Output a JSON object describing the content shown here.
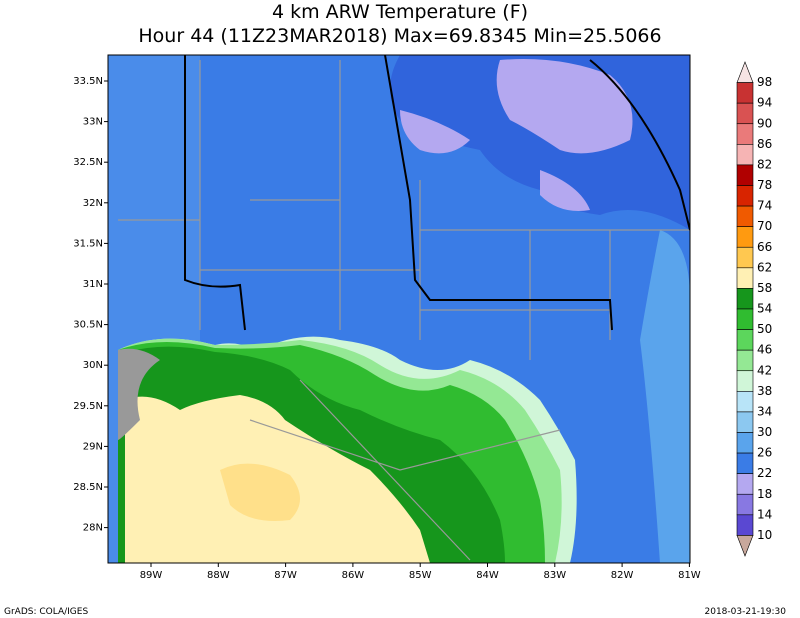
{
  "header": {
    "title": "4 km ARW Temperature (F)",
    "subtitle": "Hour 44 (11Z23MAR2018) Max=69.8345 Min=25.5066"
  },
  "lat_labels": [
    "33.5N",
    "33N",
    "32.5N",
    "32N",
    "31.5N",
    "31N",
    "30.5N",
    "30N",
    "29.5N",
    "29N",
    "28.5N",
    "28N"
  ],
  "lon_labels": [
    "89W",
    "88W",
    "87W",
    "86W",
    "85W",
    "84W",
    "83W",
    "82W",
    "81W"
  ],
  "colorbar": {
    "levels": [
      98,
      94,
      90,
      86,
      82,
      78,
      74,
      70,
      66,
      62,
      58,
      54,
      50,
      46,
      42,
      38,
      34,
      30,
      26,
      22,
      18,
      14,
      10
    ],
    "colors": [
      "#f6e4e4",
      "#c83232",
      "#d95252",
      "#ea7a7a",
      "#f6b4b4",
      "#b00000",
      "#d82400",
      "#f05a00",
      "#ff9a10",
      "#ffc850",
      "#fff0b4",
      "#16961c",
      "#30bc30",
      "#5cd65c",
      "#94e894",
      "#d0f6d8",
      "#b8e4f8",
      "#8cc8f0",
      "#5aa4ec",
      "#3a7ce6",
      "#b4a8f0",
      "#8878e2",
      "#5a48d2",
      "#c8a89c"
    ]
  },
  "footer": {
    "left": "GrADS: COLA/IGES",
    "right": "2018-03-21-19:30"
  }
}
